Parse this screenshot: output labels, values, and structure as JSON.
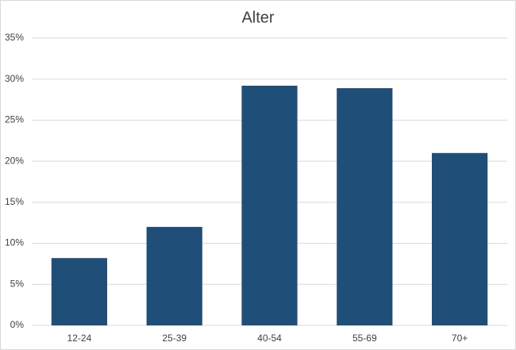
{
  "chart_data": {
    "type": "bar",
    "title": "Alter",
    "categories": [
      "12-24",
      "25-39",
      "40-54",
      "55-69",
      "70+"
    ],
    "values": [
      8.2,
      12.0,
      29.2,
      28.9,
      21.0
    ],
    "color": "#1f4e79",
    "ylim": [
      0,
      35
    ],
    "yticks": [
      {
        "value": 0,
        "label": "0%"
      },
      {
        "value": 5,
        "label": "5%"
      },
      {
        "value": 10,
        "label": "10%"
      },
      {
        "value": 15,
        "label": "15%"
      },
      {
        "value": 20,
        "label": "20%"
      },
      {
        "value": 25,
        "label": "25%"
      },
      {
        "value": 30,
        "label": "30%"
      },
      {
        "value": 35,
        "label": "35%"
      }
    ],
    "grid": true
  }
}
